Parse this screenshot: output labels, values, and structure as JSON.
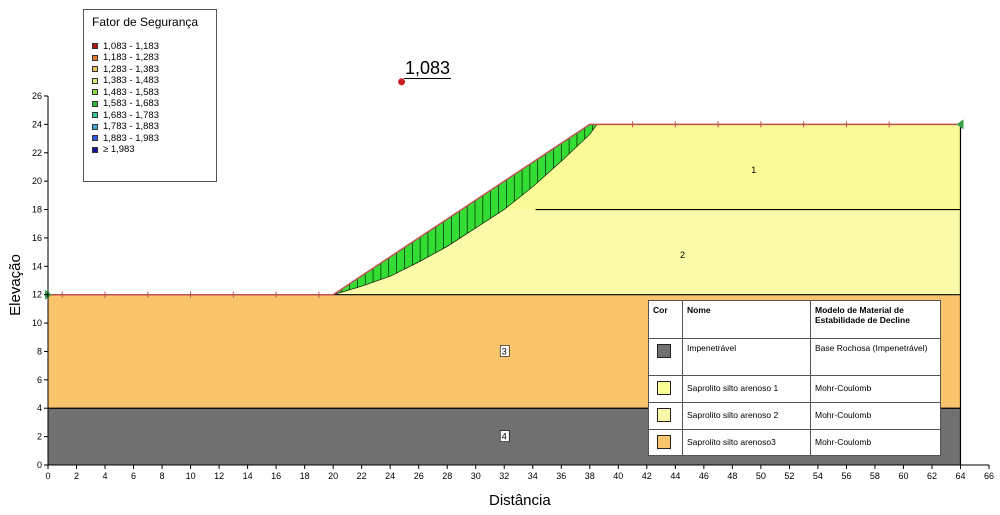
{
  "chart_data": {
    "type": "slope-stability-cross-section",
    "xlabel": "Distância",
    "ylabel": "Elevação",
    "xlim": [
      0,
      66
    ],
    "ylim": [
      0,
      26
    ],
    "x_ticks": [
      0,
      2,
      4,
      6,
      8,
      10,
      12,
      14,
      16,
      18,
      20,
      22,
      24,
      26,
      28,
      30,
      32,
      34,
      36,
      38,
      40,
      42,
      44,
      46,
      48,
      50,
      52,
      54,
      56,
      58,
      60,
      62,
      64,
      66
    ],
    "y_ticks": [
      0,
      2,
      4,
      6,
      8,
      10,
      12,
      14,
      16,
      18,
      20,
      22,
      24,
      26
    ],
    "legend": {
      "title": "Fator de Segurança",
      "entries": [
        {
          "label": "1,083 - 1,183",
          "color": "#b01818"
        },
        {
          "label": "1,183 - 1,283",
          "color": "#e07a2a"
        },
        {
          "label": "1,283 - 1,383",
          "color": "#e8c25a"
        },
        {
          "label": "1,383 - 1,483",
          "color": "#d8e86a"
        },
        {
          "label": "1,483 - 1,583",
          "color": "#8ed84a"
        },
        {
          "label": "1,583 - 1,683",
          "color": "#2ab83a"
        },
        {
          "label": "1,683 - 1,783",
          "color": "#3ac89a"
        },
        {
          "label": "1,783 - 1,883",
          "color": "#3aa8d8"
        },
        {
          "label": "1,883 - 1,983",
          "color": "#2a5ae0"
        },
        {
          "label": "≥ 1,983",
          "color": "#101090"
        }
      ]
    },
    "critical_center": {
      "x": 24.8,
      "y": 27.0,
      "label": "1,083"
    },
    "ground_surface": [
      [
        0,
        12
      ],
      [
        20,
        12
      ],
      [
        38,
        24
      ],
      [
        64,
        24
      ]
    ],
    "slip_surface": [
      [
        20,
        12
      ],
      [
        22,
        12.6
      ],
      [
        24,
        13.3
      ],
      [
        26,
        14.3
      ],
      [
        28,
        15.4
      ],
      [
        30,
        16.7
      ],
      [
        32,
        18.0
      ],
      [
        34,
        19.6
      ],
      [
        36,
        21.4
      ],
      [
        38,
        23.3
      ],
      [
        38.5,
        24
      ]
    ],
    "regions": [
      {
        "id": "1",
        "material": "Saprolito silto arenoso 1",
        "polygon": [
          [
            38,
            24
          ],
          [
            64,
            24
          ],
          [
            64,
            18
          ],
          [
            29,
            18
          ]
        ],
        "label_pos": [
          49.5,
          20.8
        ]
      },
      {
        "id": "2",
        "material": "Saprolito silto arenoso 2",
        "polygon": [
          [
            29,
            18
          ],
          [
            64,
            18
          ],
          [
            64,
            12
          ],
          [
            20,
            12
          ]
        ],
        "label_pos": [
          44.5,
          14.8
        ]
      },
      {
        "id": "3",
        "material": "Saprolito silto arenoso3",
        "polygon": [
          [
            0,
            12
          ],
          [
            64,
            12
          ],
          [
            64,
            4
          ],
          [
            0,
            4
          ]
        ],
        "label_pos": [
          32,
          8
        ]
      },
      {
        "id": "4",
        "material": "Impenetrável",
        "polygon": [
          [
            0,
            4
          ],
          [
            64,
            4
          ],
          [
            64,
            0
          ],
          [
            0,
            0
          ]
        ],
        "label_pos": [
          32,
          2
        ]
      }
    ],
    "material_boundaries": [
      {
        "from": [
          34.2,
          18
        ],
        "to": [
          64,
          18
        ]
      },
      {
        "from": [
          20,
          12
        ],
        "to": [
          64,
          12
        ]
      },
      {
        "from": [
          0,
          4
        ],
        "to": [
          64,
          4
        ]
      }
    ],
    "colors": {
      "mat1": "#fafa96",
      "mat2": "#fafaa8",
      "mat3": "#fac46c",
      "impenetravel": "#707070",
      "slip_fill": "#33dd33",
      "surface_line": "#c05050",
      "point_marker": "#3aa04a"
    }
  },
  "material_table": {
    "headers": [
      "Cor",
      "Nome",
      "Modelo de Material de Estabilidade de Decline"
    ],
    "rows": [
      {
        "color": "#707070",
        "name": "Impenetrável",
        "model": "Base Rochosa (Impenetrável)"
      },
      {
        "color": "#fafa96",
        "name": "Saprolito silto arenoso 1",
        "model": "Mohr-Coulomb"
      },
      {
        "color": "#fafaa8",
        "name": "Saprolito silto arenoso 2",
        "model": "Mohr-Coulomb"
      },
      {
        "color": "#fac46c",
        "name": "Saprolito silto arenoso3",
        "model": "Mohr-Coulomb"
      }
    ]
  }
}
